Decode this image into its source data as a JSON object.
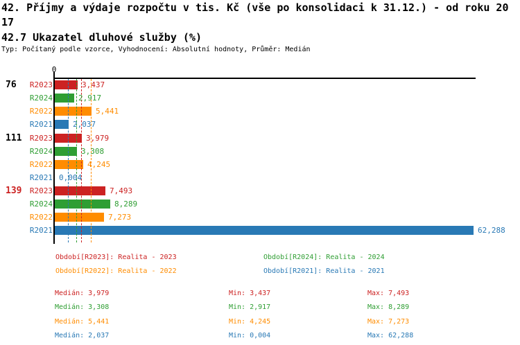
{
  "title": "42. Příjmy a výdaje rozpočtu v tis. Kč (vše po konsolidaci k 31.12.) - od roku 2017",
  "subtitle": "42.7 Ukazatel dluhové služby (%)",
  "meta": "Typ: Počítaný podle vzorce, Vyhodnocení: Absolutní hodnoty, Průměr: Medián",
  "colors": {
    "r2023_red": "#CC2222",
    "r2024_green": "#2F9E33",
    "r2022_orange": "#FF8C00",
    "r2021_blue": "#2979B5",
    "axis_black": "#000000",
    "highlight_group_red": "#CC2222"
  },
  "chart_data": {
    "type": "bar",
    "orientation": "horizontal",
    "unit": "%",
    "title": "42.7 Ukazatel dluhové služby (%)",
    "x_axis": {
      "zero_label": "0",
      "min": 0,
      "approx_max": 62.7,
      "gridlines": false
    },
    "legend_position": "bottom",
    "series": [
      {
        "id": "R2023",
        "name": "Realita - 2023",
        "color": "#CC2222",
        "median": 3.979
      },
      {
        "id": "R2024",
        "name": "Realita - 2024",
        "color": "#2F9E33",
        "median": 3.308
      },
      {
        "id": "R2022",
        "name": "Realita - 2022",
        "color": "#FF8C00",
        "median": 5.441
      },
      {
        "id": "R2021",
        "name": "Realita - 2021",
        "color": "#2979B5",
        "median": 2.037
      }
    ],
    "groups": [
      {
        "label": "76",
        "label_color": "#000000",
        "values": [
          3.437,
          2.917,
          5.441,
          2.037
        ],
        "value_labels": [
          "3,437",
          "2,917",
          "5,441",
          "2,037"
        ]
      },
      {
        "label": "111",
        "label_color": "#000000",
        "values": [
          3.979,
          3.308,
          4.245,
          0.004
        ],
        "value_labels": [
          "3,979",
          "3,308",
          "4,245",
          "0,004"
        ]
      },
      {
        "label": "139",
        "label_color": "#CC2222",
        "values": [
          7.493,
          8.289,
          7.273,
          62.288
        ],
        "value_labels": [
          "7,493",
          "8,289",
          "7,273",
          "62,288"
        ]
      }
    ],
    "median_lines": [
      {
        "series": "R2021",
        "value": 2.037,
        "color": "#2979B5"
      },
      {
        "series": "R2024",
        "value": 3.308,
        "color": "#2F9E33"
      },
      {
        "series": "R2023",
        "value": 3.979,
        "color": "#CC2222"
      },
      {
        "series": "R2022",
        "value": 5.441,
        "color": "#FF8C00"
      }
    ]
  },
  "legend": {
    "rows": [
      [
        {
          "text": "Období[R2023]: Realita - 2023",
          "color": "#CC2222"
        },
        {
          "text": "Období[R2024]: Realita - 2024",
          "color": "#2F9E33"
        }
      ],
      [
        {
          "text": "Období[R2022]: Realita - 2022",
          "color": "#FF8C00"
        },
        {
          "text": "Období[R2021]: Realita - 2021",
          "color": "#2979B5"
        }
      ]
    ]
  },
  "stats": {
    "rows": [
      {
        "color": "#CC2222",
        "median": "Medián: 3,979",
        "min": "Min: 3,437",
        "max": "Max: 7,493"
      },
      {
        "color": "#2F9E33",
        "median": "Medián: 3,308",
        "min": "Min: 2,917",
        "max": "Max: 8,289"
      },
      {
        "color": "#FF8C00",
        "median": "Medián: 5,441",
        "min": "Min: 4,245",
        "max": "Max: 7,273"
      },
      {
        "color": "#2979B5",
        "median": "Medián: 2,037",
        "min": "Min: 0,004",
        "max": "Max: 62,288"
      }
    ]
  }
}
